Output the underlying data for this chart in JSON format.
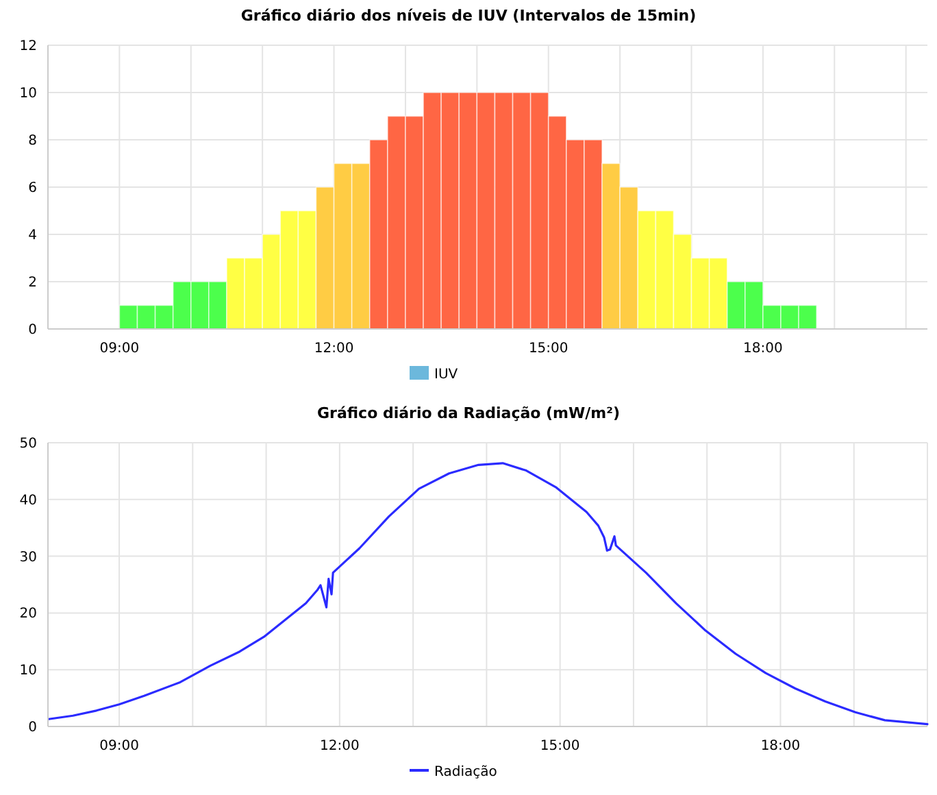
{
  "chart_data": [
    {
      "type": "bar",
      "title": "Gráfico diário dos níveis de IUV (Intervalos de 15min)",
      "x": [
        9.125,
        9.375,
        9.625,
        9.875,
        10.125,
        10.375,
        10.625,
        10.875,
        11.125,
        11.375,
        11.625,
        11.875,
        12.125,
        12.375,
        12.625,
        12.875,
        13.125,
        13.375,
        13.625,
        13.875,
        14.125,
        14.375,
        14.625,
        14.875,
        15.125,
        15.375,
        15.625,
        15.875,
        16.125,
        16.375,
        16.625,
        16.875,
        17.125,
        17.375,
        17.625,
        17.875,
        18.125,
        18.375,
        18.625
      ],
      "series": [
        {
          "name": "IUV",
          "color": "#6cb8dc",
          "values": [
            1,
            1,
            1,
            2,
            2,
            2,
            3,
            3,
            4,
            5,
            5,
            6,
            7,
            7,
            8,
            9,
            9,
            10,
            10,
            10,
            10,
            10,
            10,
            10,
            9,
            8,
            8,
            7,
            6,
            5,
            5,
            4,
            3,
            3,
            2,
            2,
            1,
            1,
            1
          ],
          "colors": [
            "#4cff4c",
            "#4cff4c",
            "#4cff4c",
            "#4cff4c",
            "#4cff4c",
            "#4cff4c",
            "#ffff44",
            "#ffff44",
            "#ffff44",
            "#ffff44",
            "#ffff44",
            "#ffcc44",
            "#ffcc44",
            "#ffcc44",
            "#ff6644",
            "#ff6644",
            "#ff6644",
            "#ff6644",
            "#ff6644",
            "#ff6644",
            "#ff6644",
            "#ff6644",
            "#ff6644",
            "#ff6644",
            "#ff6644",
            "#ff6644",
            "#ff6644",
            "#ffcc44",
            "#ffcc44",
            "#ffff44",
            "#ffff44",
            "#ffff44",
            "#ffff44",
            "#ffff44",
            "#4cff4c",
            "#4cff4c",
            "#4cff4c",
            "#4cff4c",
            "#4cff4c"
          ]
        }
      ],
      "xlim": [
        8,
        20.3
      ],
      "xticks": [
        {
          "value": 8,
          "label": null
        },
        {
          "value": 9,
          "label": "09:00"
        },
        {
          "value": 10,
          "label": null
        },
        {
          "value": 11,
          "label": null
        },
        {
          "value": 12,
          "label": "12:00"
        },
        {
          "value": 13,
          "label": null
        },
        {
          "value": 14,
          "label": null
        },
        {
          "value": 15,
          "label": "15:00"
        },
        {
          "value": 16,
          "label": null
        },
        {
          "value": 17,
          "label": null
        },
        {
          "value": 18,
          "label": "18:00"
        },
        {
          "value": 19,
          "label": null
        },
        {
          "value": 20,
          "label": null
        }
      ],
      "ylim": [
        0,
        12
      ],
      "yticks": [
        0,
        2,
        4,
        6,
        8,
        10,
        12
      ],
      "grid": true,
      "legend": "bottom"
    },
    {
      "type": "line",
      "title": "Gráfico diário da Radiação (mW/m²)",
      "series": [
        {
          "name": "Radiação",
          "color": "#2b2bff",
          "x": [
            8.04,
            8.37,
            8.69,
            9.0,
            9.34,
            9.83,
            10.24,
            10.64,
            10.97,
            11.29,
            11.54,
            11.7,
            11.74,
            11.82,
            11.85,
            11.89,
            11.91,
            12.27,
            12.67,
            13.08,
            13.49,
            13.89,
            14.22,
            14.54,
            14.95,
            15.36,
            15.52,
            15.6,
            15.64,
            15.68,
            15.74,
            15.76,
            16.17,
            16.58,
            16.98,
            17.39,
            17.8,
            18.2,
            18.61,
            19.02,
            19.42,
            20.0
          ],
          "values": [
            1.3,
            1.9,
            2.8,
            3.9,
            5.4,
            7.8,
            10.7,
            13.2,
            15.8,
            19.1,
            21.7,
            24.1,
            24.9,
            21,
            26,
            23.3,
            27.1,
            31.4,
            37,
            41.9,
            44.6,
            46.1,
            46.4,
            45.1,
            42.1,
            37.8,
            35.4,
            33.3,
            31.0,
            31.2,
            33.5,
            31.9,
            27.1,
            21.7,
            16.9,
            12.8,
            9.4,
            6.7,
            4.4,
            2.5,
            1.1,
            0.4
          ]
        }
      ],
      "xlim": [
        8.03,
        20.0
      ],
      "xticks": [
        {
          "value": 9,
          "label": "09:00"
        },
        {
          "value": 10,
          "label": null
        },
        {
          "value": 11,
          "label": null
        },
        {
          "value": 12,
          "label": "12:00"
        },
        {
          "value": 13,
          "label": null
        },
        {
          "value": 14,
          "label": null
        },
        {
          "value": 15,
          "label": "15:00"
        },
        {
          "value": 16,
          "label": null
        },
        {
          "value": 17,
          "label": null
        },
        {
          "value": 18,
          "label": "18:00"
        },
        {
          "value": 19,
          "label": null
        },
        {
          "value": 20,
          "label": null
        }
      ],
      "ylim": [
        0,
        50
      ],
      "yticks": [
        0,
        10,
        20,
        30,
        40,
        50
      ],
      "grid": true,
      "legend": "bottom"
    }
  ]
}
